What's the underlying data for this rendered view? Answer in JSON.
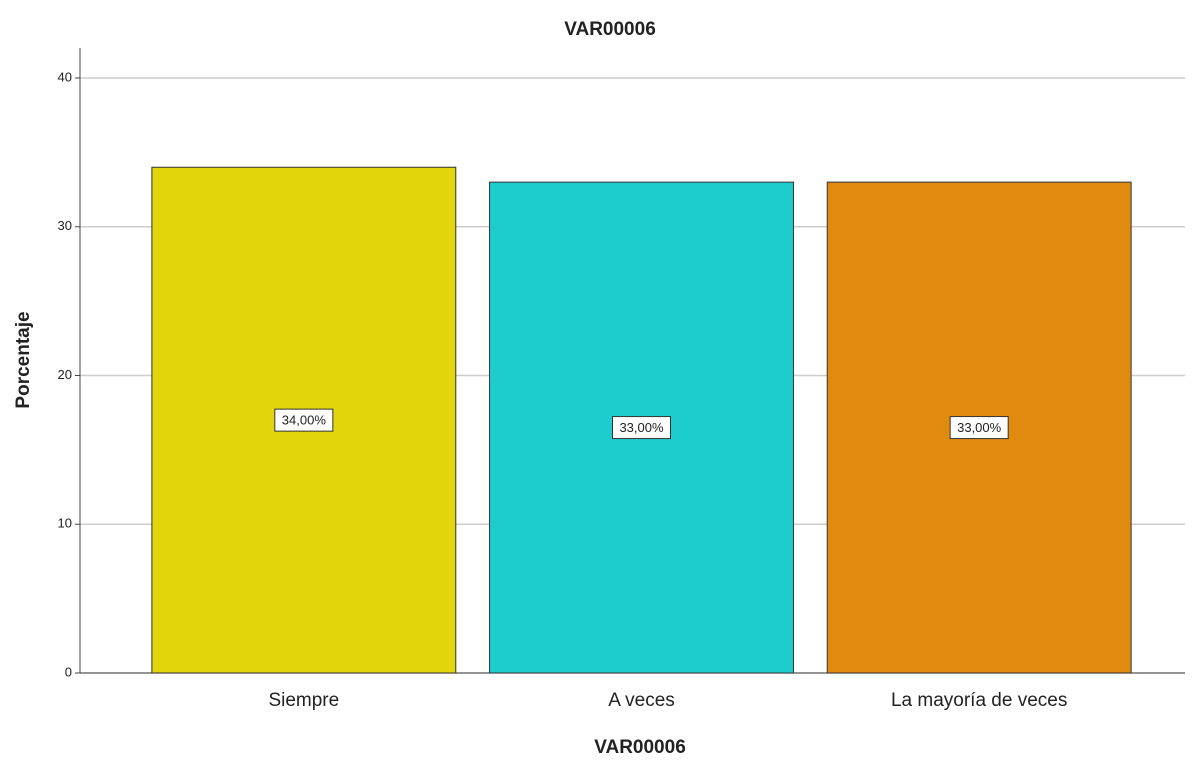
{
  "chart_data": {
    "type": "bar",
    "title": "VAR00006",
    "x_label": "VAR00006",
    "y_label": "Porcentaje",
    "categories": [
      "Siempre",
      "A veces",
      "La mayoría de veces"
    ],
    "values": [
      34,
      33,
      33
    ],
    "value_labels": [
      "34,00%",
      "33,00%",
      "33,00%"
    ],
    "colors": [
      "#e2d50c",
      "#1dcdcd",
      "#e08a10"
    ],
    "ylim": [
      0,
      40
    ],
    "yticks": [
      0,
      10,
      20,
      30,
      40
    ],
    "grid": true
  }
}
